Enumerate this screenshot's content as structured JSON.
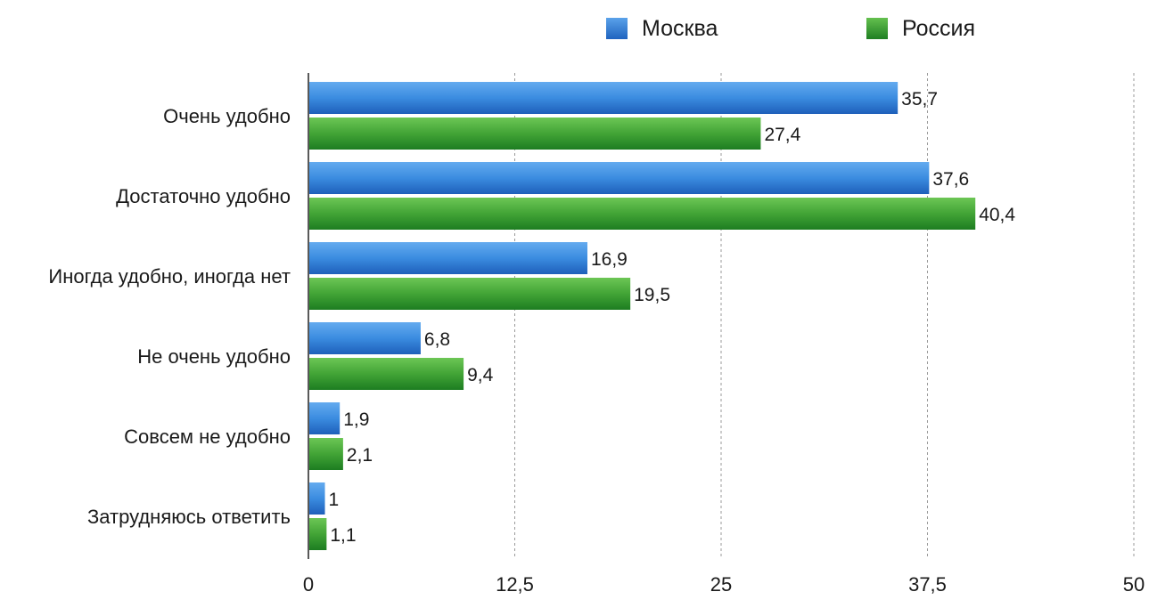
{
  "legend": [
    {
      "name": "Москва",
      "color": "#2d7fd4"
    },
    {
      "name": "Россия",
      "color": "#3a9f2f"
    }
  ],
  "chart_data": {
    "type": "bar",
    "orientation": "horizontal",
    "categories": [
      "Очень удобно",
      "Достаточно удобно",
      "Иногда удобно, иногда нет",
      "Не очень удобно",
      "Совсем не удобно",
      "Затрудняюсь ответить"
    ],
    "series": [
      {
        "name": "Москва",
        "values": [
          35.7,
          37.6,
          16.9,
          6.8,
          1.9,
          1.0
        ],
        "labels": [
          "35,7",
          "37,6",
          "16,9",
          "6,8",
          "1,9",
          "1"
        ],
        "color": "#2d7fd4"
      },
      {
        "name": "Россия",
        "values": [
          27.4,
          40.4,
          19.5,
          9.4,
          2.1,
          1.1
        ],
        "labels": [
          "27,4",
          "40,4",
          "19,5",
          "9,4",
          "2,1",
          "1,1"
        ],
        "color": "#3a9f2f"
      }
    ],
    "xlim": [
      0,
      50
    ],
    "xticks": [
      0,
      12.5,
      25,
      37.5,
      50
    ],
    "xtick_labels": [
      "0",
      "12,5",
      "25",
      "37,5",
      "50"
    ],
    "grid": true,
    "legend_position": "top-right"
  }
}
